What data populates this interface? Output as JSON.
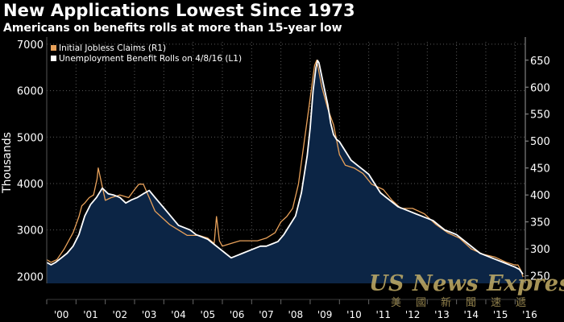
{
  "title": "New Applications Lowest Since 1973",
  "subtitle": "Americans on benefits rolls at more than 15-year low",
  "colors": {
    "background": "#000000",
    "plot_background": "#000000",
    "area_fill": "#0c2545",
    "claims_line": "#e8a15a",
    "rolls_line": "#ffffff",
    "grid": "#5a5a5a",
    "text": "#ffffff",
    "watermark": "#cbb46a"
  },
  "watermark": {
    "main": "US News Express",
    "sub": "美國新聞速遞"
  },
  "chart_data": {
    "type": "line",
    "title": "New Applications Lowest Since 1973",
    "subtitle": "Americans on benefits rolls at more than 15-year low",
    "xlabel": "",
    "ylabel_left": "Thousands",
    "ylabel_right": "",
    "x_tick_labels": [
      "'00",
      "'01",
      "'02",
      "'03",
      "'04",
      "'05",
      "'06",
      "'07",
      "'08",
      "'09",
      "'10",
      "'11",
      "'12",
      "'13",
      "'14",
      "'15",
      "'16"
    ],
    "x_range": [
      2000.0,
      2016.35
    ],
    "ylim_left": [
      1850,
      7050
    ],
    "yticks_left": [
      2000,
      3000,
      4000,
      5000,
      6000,
      7000
    ],
    "ylim_right": [
      236,
      684
    ],
    "yticks_right": [
      250,
      300,
      350,
      400,
      450,
      500,
      550,
      600,
      650
    ],
    "grid": true,
    "legend_position": "top-left",
    "series": [
      {
        "name": "Initial Jobless Claims (R1)",
        "axis": "right",
        "style": "line",
        "x": [
          2000.0,
          2000.15,
          2000.35,
          2000.6,
          2000.9,
          2001.1,
          2001.2,
          2001.3,
          2001.45,
          2001.6,
          2001.72,
          2001.76,
          2001.8,
          2001.9,
          2002.0,
          2002.2,
          2002.5,
          2002.8,
          2003.0,
          2003.15,
          2003.3,
          2003.5,
          2003.7,
          2003.9,
          2004.2,
          2004.5,
          2004.8,
          2005.2,
          2005.5,
          2005.72,
          2005.8,
          2005.9,
          2006.0,
          2006.3,
          2006.6,
          2006.9,
          2007.2,
          2007.5,
          2007.8,
          2008.0,
          2008.2,
          2008.4,
          2008.6,
          2008.8,
          2008.95,
          2009.05,
          2009.15,
          2009.22,
          2009.4,
          2009.6,
          2009.8,
          2010.0,
          2010.2,
          2010.5,
          2010.8,
          2011.1,
          2011.3,
          2011.5,
          2011.8,
          2012.1,
          2012.5,
          2012.9,
          2013.3,
          2013.7,
          2014.1,
          2014.5,
          2014.9,
          2015.3,
          2015.7,
          2016.0,
          2016.1,
          2016.2,
          2016.27
        ],
        "values": [
          280,
          275,
          280,
          300,
          330,
          360,
          380,
          385,
          395,
          400,
          430,
          450,
          440,
          415,
          390,
          395,
          400,
          395,
          410,
          420,
          420,
          395,
          370,
          360,
          345,
          335,
          325,
          325,
          320,
          310,
          360,
          315,
          305,
          310,
          315,
          315,
          315,
          320,
          330,
          350,
          360,
          375,
          420,
          500,
          560,
          600,
          640,
          650,
          600,
          560,
          530,
          475,
          455,
          450,
          440,
          420,
          415,
          410,
          390,
          375,
          375,
          365,
          345,
          330,
          320,
          300,
          290,
          285,
          275,
          270,
          270,
          260,
          248
        ]
      },
      {
        "name": "Unemployment Benefit Rolls on 4/8/16 (L1)",
        "axis": "left",
        "style": "line+area",
        "x": [
          2000.0,
          2000.15,
          2000.3,
          2000.5,
          2000.7,
          2000.9,
          2001.1,
          2001.3,
          2001.5,
          2001.7,
          2001.9,
          2002.1,
          2002.3,
          2002.5,
          2002.7,
          2002.9,
          2003.1,
          2003.3,
          2003.5,
          2003.7,
          2003.9,
          2004.1,
          2004.3,
          2004.5,
          2004.7,
          2004.9,
          2005.1,
          2005.3,
          2005.5,
          2005.7,
          2005.9,
          2006.1,
          2006.3,
          2006.5,
          2006.7,
          2006.9,
          2007.1,
          2007.3,
          2007.5,
          2007.7,
          2007.9,
          2008.1,
          2008.3,
          2008.5,
          2008.7,
          2008.9,
          2009.0,
          2009.1,
          2009.2,
          2009.25,
          2009.3,
          2009.4,
          2009.5,
          2009.6,
          2009.7,
          2009.8,
          2009.9,
          2010.0,
          2010.2,
          2010.4,
          2010.6,
          2010.8,
          2011.0,
          2011.2,
          2011.4,
          2011.6,
          2011.8,
          2012.0,
          2012.2,
          2012.4,
          2012.6,
          2012.8,
          2013.0,
          2013.2,
          2013.4,
          2013.6,
          2013.8,
          2014.0,
          2014.2,
          2014.4,
          2014.6,
          2014.8,
          2015.0,
          2015.2,
          2015.4,
          2015.6,
          2015.8,
          2016.0,
          2016.15,
          2016.27
        ],
        "values": [
          2300,
          2250,
          2300,
          2400,
          2500,
          2650,
          2900,
          3300,
          3550,
          3700,
          3900,
          3780,
          3750,
          3700,
          3580,
          3650,
          3700,
          3780,
          3850,
          3700,
          3550,
          3400,
          3250,
          3100,
          3050,
          3000,
          2900,
          2850,
          2800,
          2700,
          2600,
          2500,
          2400,
          2450,
          2500,
          2550,
          2600,
          2650,
          2650,
          2700,
          2750,
          2900,
          3100,
          3300,
          3800,
          4600,
          5200,
          6000,
          6500,
          6650,
          6600,
          6300,
          6000,
          5700,
          5300,
          5050,
          4950,
          4900,
          4700,
          4500,
          4400,
          4300,
          4200,
          4000,
          3800,
          3700,
          3600,
          3500,
          3450,
          3400,
          3350,
          3300,
          3250,
          3200,
          3100,
          3000,
          2950,
          2900,
          2800,
          2700,
          2600,
          2500,
          2450,
          2400,
          2350,
          2300,
          2250,
          2200,
          2150,
          2050
        ]
      }
    ]
  }
}
